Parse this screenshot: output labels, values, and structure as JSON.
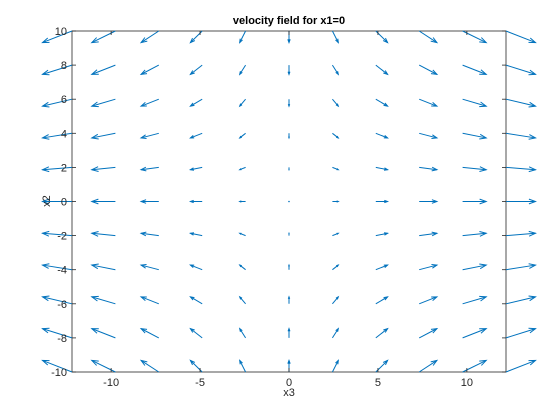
{
  "chart_data": {
    "type": "quiver",
    "title": "velocity field for x1=0",
    "xlabel": "x3",
    "ylabel": "x2",
    "xlim": [
      -12.2,
      12.2
    ],
    "ylim": [
      -10,
      10
    ],
    "xticks": [
      -10,
      -5,
      0,
      5,
      10
    ],
    "yticks": [
      -10,
      -8,
      -6,
      -4,
      -2,
      0,
      2,
      4,
      6,
      8,
      10
    ],
    "x": [
      -12.2,
      -9.76,
      -7.32,
      -4.88,
      -2.44,
      0,
      2.44,
      4.88,
      7.32,
      9.76,
      12.2
    ],
    "y": [
      -10,
      -8,
      -6,
      -4,
      -2,
      0,
      2,
      4,
      6,
      8,
      10
    ],
    "field": {
      "u": "x3",
      "v": "-x2 / 2"
    },
    "arrow_scale": 0.76,
    "colors": {
      "arrow": "#0072bd",
      "axes": "#262626",
      "background": "#ffffff"
    }
  }
}
